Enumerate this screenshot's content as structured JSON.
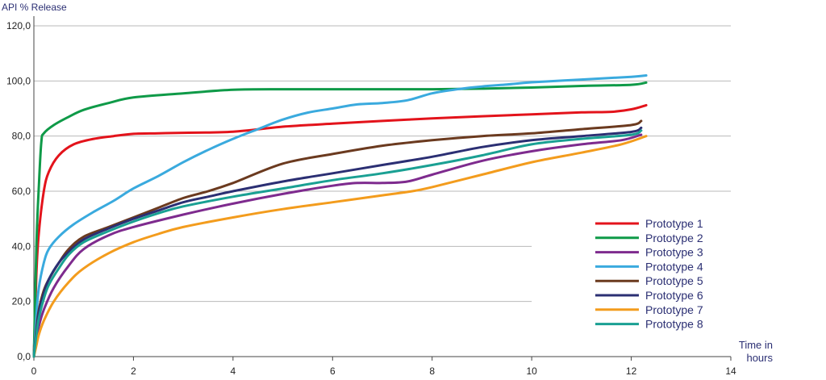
{
  "chart_data": {
    "type": "line",
    "ylabel": "API % Release",
    "xlabel_line1": "Time in",
    "xlabel_line2": "hours",
    "xlim": [
      0,
      14
    ],
    "ylim": [
      0,
      120
    ],
    "x_ticks": [
      "0",
      "2",
      "4",
      "6",
      "8",
      "10",
      "12",
      "14"
    ],
    "y_ticks": [
      "0,0",
      "20,0",
      "40,0",
      "60,0",
      "80,0",
      "100,0",
      "120,0"
    ],
    "grid": true,
    "legend_position": "right",
    "series": [
      {
        "name": "Prototype 1",
        "color": "#e3131b",
        "points": [
          [
            0,
            0
          ],
          [
            0.05,
            30
          ],
          [
            0.1,
            45
          ],
          [
            0.2,
            60
          ],
          [
            0.3,
            67
          ],
          [
            0.5,
            73
          ],
          [
            0.8,
            77
          ],
          [
            1.2,
            79
          ],
          [
            1.6,
            80
          ],
          [
            2,
            80.8
          ],
          [
            2.5,
            81
          ],
          [
            3,
            81.2
          ],
          [
            4,
            81.6
          ],
          [
            5,
            83.4
          ],
          [
            6,
            84.5
          ],
          [
            7,
            85.5
          ],
          [
            8,
            86.4
          ],
          [
            9,
            87.2
          ],
          [
            10,
            87.9
          ],
          [
            11,
            88.6
          ],
          [
            11.6,
            88.8
          ],
          [
            12,
            89.7
          ],
          [
            12.3,
            91.2
          ]
        ]
      },
      {
        "name": "Prototype 2",
        "color": "#0f9a48",
        "points": [
          [
            0,
            0
          ],
          [
            0.05,
            40
          ],
          [
            0.1,
            62
          ],
          [
            0.15,
            78
          ],
          [
            0.2,
            81
          ],
          [
            0.4,
            84
          ],
          [
            0.7,
            87
          ],
          [
            1,
            89.5
          ],
          [
            1.5,
            92
          ],
          [
            2,
            94
          ],
          [
            3,
            95.5
          ],
          [
            4,
            96.8
          ],
          [
            5,
            97
          ],
          [
            6,
            97
          ],
          [
            7,
            97
          ],
          [
            8,
            97
          ],
          [
            9,
            97.2
          ],
          [
            10,
            97.6
          ],
          [
            11,
            98.2
          ],
          [
            12,
            98.6
          ],
          [
            12.3,
            99.4
          ]
        ]
      },
      {
        "name": "Prototype 3",
        "color": "#7e2b8e",
        "points": [
          [
            0,
            0
          ],
          [
            0.05,
            6
          ],
          [
            0.1,
            11
          ],
          [
            0.2,
            17
          ],
          [
            0.4,
            25
          ],
          [
            0.7,
            33
          ],
          [
            1,
            39
          ],
          [
            1.5,
            44
          ],
          [
            2,
            47
          ],
          [
            3,
            51.5
          ],
          [
            4,
            55.5
          ],
          [
            5,
            59
          ],
          [
            6,
            62
          ],
          [
            6.5,
            63
          ],
          [
            7,
            63
          ],
          [
            7.5,
            63.5
          ],
          [
            8,
            66
          ],
          [
            9,
            71
          ],
          [
            10,
            74.5
          ],
          [
            11,
            77
          ],
          [
            11.8,
            78.5
          ],
          [
            12.2,
            80.5
          ]
        ]
      },
      {
        "name": "Prototype 4",
        "color": "#3aaade",
        "points": [
          [
            0,
            0
          ],
          [
            0.05,
            15
          ],
          [
            0.1,
            25
          ],
          [
            0.2,
            34
          ],
          [
            0.3,
            39
          ],
          [
            0.5,
            43.5
          ],
          [
            0.8,
            48
          ],
          [
            1.2,
            52.5
          ],
          [
            1.6,
            56.5
          ],
          [
            2,
            61
          ],
          [
            2.5,
            65.5
          ],
          [
            3,
            70.5
          ],
          [
            3.5,
            75
          ],
          [
            4,
            79
          ],
          [
            4.5,
            82.5
          ],
          [
            5,
            86
          ],
          [
            5.5,
            88.5
          ],
          [
            6,
            90
          ],
          [
            6.5,
            91.5
          ],
          [
            7,
            92
          ],
          [
            7.5,
            93
          ],
          [
            8,
            95.5
          ],
          [
            8.5,
            97
          ],
          [
            9,
            98
          ],
          [
            9.5,
            98.7
          ],
          [
            10,
            99.5
          ],
          [
            11,
            100.5
          ],
          [
            12,
            101.5
          ],
          [
            12.3,
            102
          ]
        ]
      },
      {
        "name": "Prototype 5",
        "color": "#6b3a1f",
        "points": [
          [
            0,
            0
          ],
          [
            0.05,
            10
          ],
          [
            0.1,
            17
          ],
          [
            0.2,
            24
          ],
          [
            0.3,
            28
          ],
          [
            0.5,
            34
          ],
          [
            0.7,
            39
          ],
          [
            1,
            43.5
          ],
          [
            1.5,
            47
          ],
          [
            2,
            50.5
          ],
          [
            2.5,
            54
          ],
          [
            3,
            57.5
          ],
          [
            3.5,
            60
          ],
          [
            4,
            63
          ],
          [
            5,
            70
          ],
          [
            6,
            73.5
          ],
          [
            7,
            76.5
          ],
          [
            8,
            78.5
          ],
          [
            9,
            80
          ],
          [
            10,
            81
          ],
          [
            11,
            82.5
          ],
          [
            12,
            84
          ],
          [
            12.2,
            85.5
          ]
        ]
      },
      {
        "name": "Prototype 6",
        "color": "#2b2f73",
        "points": [
          [
            0,
            0
          ],
          [
            0.05,
            9
          ],
          [
            0.1,
            16
          ],
          [
            0.2,
            23
          ],
          [
            0.3,
            28
          ],
          [
            0.5,
            34
          ],
          [
            0.7,
            38
          ],
          [
            1,
            42.5
          ],
          [
            1.5,
            46.5
          ],
          [
            2,
            50
          ],
          [
            2.5,
            53
          ],
          [
            3,
            56
          ],
          [
            3.5,
            58
          ],
          [
            4,
            60
          ],
          [
            5,
            63.5
          ],
          [
            6,
            66.5
          ],
          [
            7,
            69.5
          ],
          [
            8,
            72.5
          ],
          [
            9,
            76
          ],
          [
            10,
            78.5
          ],
          [
            11,
            80
          ],
          [
            12,
            81.5
          ],
          [
            12.2,
            83
          ]
        ]
      },
      {
        "name": "Prototype 7",
        "color": "#f39c1d",
        "points": [
          [
            0,
            0
          ],
          [
            0.05,
            4
          ],
          [
            0.1,
            8
          ],
          [
            0.2,
            13
          ],
          [
            0.4,
            20
          ],
          [
            0.7,
            27
          ],
          [
            1,
            32
          ],
          [
            1.5,
            37.5
          ],
          [
            2,
            41.5
          ],
          [
            2.5,
            44.5
          ],
          [
            3,
            47
          ],
          [
            4,
            50.5
          ],
          [
            5,
            53.5
          ],
          [
            6,
            56
          ],
          [
            7,
            58.5
          ],
          [
            7.6,
            60
          ],
          [
            8,
            61.5
          ],
          [
            9,
            66
          ],
          [
            10,
            70.5
          ],
          [
            11,
            74
          ],
          [
            11.8,
            77
          ],
          [
            12.3,
            80
          ]
        ]
      },
      {
        "name": "Prototype 8",
        "color": "#1aa093",
        "points": [
          [
            0,
            0
          ],
          [
            0.05,
            8
          ],
          [
            0.1,
            14
          ],
          [
            0.2,
            21
          ],
          [
            0.3,
            26
          ],
          [
            0.5,
            32
          ],
          [
            0.7,
            37
          ],
          [
            1,
            41.5
          ],
          [
            1.5,
            45.5
          ],
          [
            2,
            49
          ],
          [
            2.5,
            52
          ],
          [
            3,
            54.5
          ],
          [
            4,
            58
          ],
          [
            5,
            61
          ],
          [
            6,
            64
          ],
          [
            7,
            66.5
          ],
          [
            8,
            69.5
          ],
          [
            9,
            73
          ],
          [
            10,
            77
          ],
          [
            11,
            79
          ],
          [
            12,
            80.5
          ],
          [
            12.2,
            82
          ]
        ]
      }
    ]
  }
}
